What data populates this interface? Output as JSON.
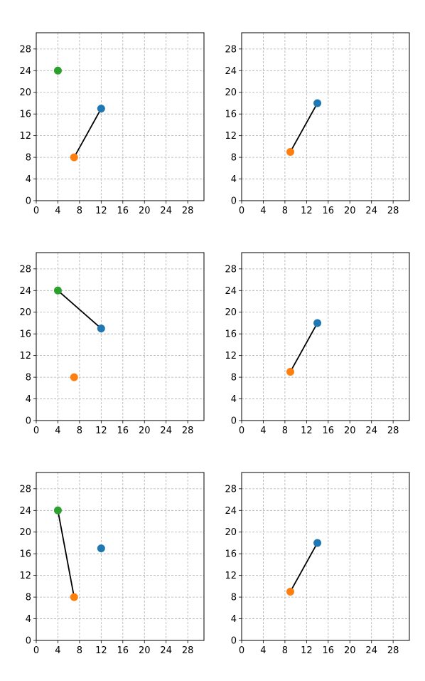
{
  "chart_data": [
    {
      "type": "scatter",
      "xlim": [
        0,
        31
      ],
      "ylim": [
        0,
        31
      ],
      "xticks": [
        0,
        4,
        8,
        12,
        16,
        20,
        24,
        28
      ],
      "yticks": [
        0,
        4,
        8,
        12,
        16,
        20,
        24,
        28
      ],
      "grid": true,
      "points": [
        {
          "x": 12,
          "y": 17,
          "color": "#1f77b4"
        },
        {
          "x": 7,
          "y": 8,
          "color": "#ff7f0e"
        },
        {
          "x": 4,
          "y": 24,
          "color": "#2ca02c"
        }
      ],
      "segment": [
        [
          12,
          17
        ],
        [
          7,
          8
        ]
      ]
    },
    {
      "type": "scatter",
      "xlim": [
        0,
        31
      ],
      "ylim": [
        0,
        31
      ],
      "xticks": [
        0,
        4,
        8,
        12,
        16,
        20,
        24,
        28
      ],
      "yticks": [
        0,
        4,
        8,
        12,
        16,
        20,
        24,
        28
      ],
      "grid": true,
      "points": [
        {
          "x": 14,
          "y": 18,
          "color": "#1f77b4"
        },
        {
          "x": 9,
          "y": 9,
          "color": "#ff7f0e"
        }
      ],
      "segment": [
        [
          14,
          18
        ],
        [
          9,
          9
        ]
      ]
    },
    {
      "type": "scatter",
      "xlim": [
        0,
        31
      ],
      "ylim": [
        0,
        31
      ],
      "xticks": [
        0,
        4,
        8,
        12,
        16,
        20,
        24,
        28
      ],
      "yticks": [
        0,
        4,
        8,
        12,
        16,
        20,
        24,
        28
      ],
      "grid": true,
      "points": [
        {
          "x": 12,
          "y": 17,
          "color": "#1f77b4"
        },
        {
          "x": 7,
          "y": 8,
          "color": "#ff7f0e"
        },
        {
          "x": 4,
          "y": 24,
          "color": "#2ca02c"
        }
      ],
      "segment": [
        [
          4,
          24
        ],
        [
          12,
          17
        ]
      ]
    },
    {
      "type": "scatter",
      "xlim": [
        0,
        31
      ],
      "ylim": [
        0,
        31
      ],
      "xticks": [
        0,
        4,
        8,
        12,
        16,
        20,
        24,
        28
      ],
      "yticks": [
        0,
        4,
        8,
        12,
        16,
        20,
        24,
        28
      ],
      "grid": true,
      "points": [
        {
          "x": 14,
          "y": 18,
          "color": "#1f77b4"
        },
        {
          "x": 9,
          "y": 9,
          "color": "#ff7f0e"
        }
      ],
      "segment": [
        [
          14,
          18
        ],
        [
          9,
          9
        ]
      ]
    },
    {
      "type": "scatter",
      "xlim": [
        0,
        31
      ],
      "ylim": [
        0,
        31
      ],
      "xticks": [
        0,
        4,
        8,
        12,
        16,
        20,
        24,
        28
      ],
      "yticks": [
        0,
        4,
        8,
        12,
        16,
        20,
        24,
        28
      ],
      "grid": true,
      "points": [
        {
          "x": 12,
          "y": 17,
          "color": "#1f77b4"
        },
        {
          "x": 7,
          "y": 8,
          "color": "#ff7f0e"
        },
        {
          "x": 4,
          "y": 24,
          "color": "#2ca02c"
        }
      ],
      "segment": [
        [
          4,
          24
        ],
        [
          7,
          8
        ]
      ]
    },
    {
      "type": "scatter",
      "xlim": [
        0,
        31
      ],
      "ylim": [
        0,
        31
      ],
      "xticks": [
        0,
        4,
        8,
        12,
        16,
        20,
        24,
        28
      ],
      "yticks": [
        0,
        4,
        8,
        12,
        16,
        20,
        24,
        28
      ],
      "grid": true,
      "points": [
        {
          "x": 14,
          "y": 18,
          "color": "#1f77b4"
        },
        {
          "x": 9,
          "y": 9,
          "color": "#ff7f0e"
        }
      ],
      "segment": [
        [
          14,
          18
        ],
        [
          9,
          9
        ]
      ]
    }
  ]
}
